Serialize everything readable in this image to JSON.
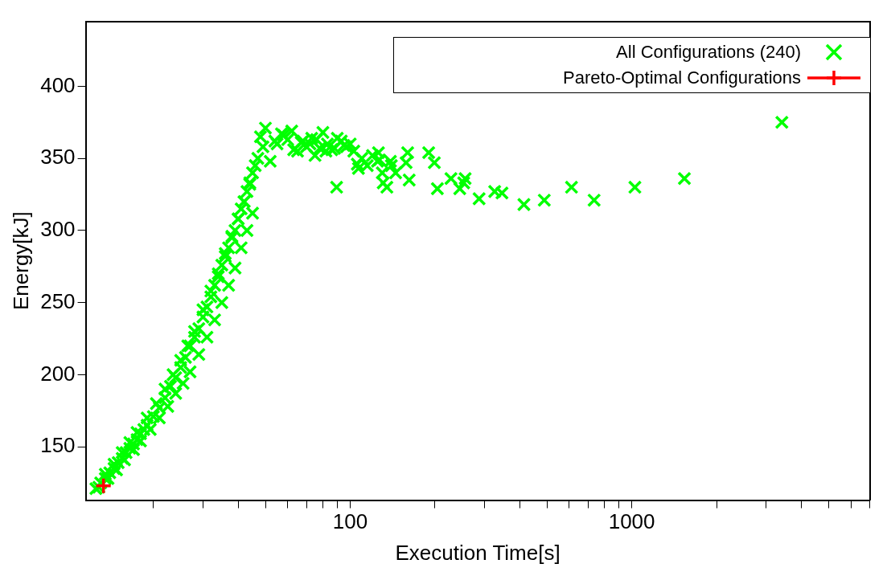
{
  "chart_data": {
    "type": "scatter",
    "xlabel": "Execution Time[s]",
    "ylabel": "Energy[kJ]",
    "log": "x",
    "grid": false,
    "legend": "top right",
    "marker": "cross",
    "xlim": [
      11.5,
      7000
    ],
    "ylim": [
      113,
      445
    ],
    "xticks": [
      {
        "value": 20,
        "label": null
      },
      {
        "value": 30,
        "label": null
      },
      {
        "value": 40,
        "label": null
      },
      {
        "value": 50,
        "label": null
      },
      {
        "value": 60,
        "label": null
      },
      {
        "value": 70,
        "label": null
      },
      {
        "value": 80,
        "label": null
      },
      {
        "value": 90,
        "label": null
      },
      100,
      {
        "value": 200,
        "label": null
      },
      {
        "value": 300,
        "label": null
      },
      {
        "value": 400,
        "label": null
      },
      {
        "value": 500,
        "label": null
      },
      {
        "value": 600,
        "label": null
      },
      {
        "value": 700,
        "label": null
      },
      {
        "value": 800,
        "label": null
      },
      {
        "value": 900,
        "label": null
      },
      1000,
      {
        "value": 2000,
        "label": null
      },
      {
        "value": 3000,
        "label": null
      },
      {
        "value": 4000,
        "label": null
      },
      {
        "value": 5000,
        "label": null
      },
      {
        "value": 6000,
        "label": null
      },
      {
        "value": 7000,
        "label": null
      }
    ],
    "yticks": [
      150,
      200,
      250,
      300,
      350,
      400
    ],
    "series": [
      {
        "name": "All Configurations (240)",
        "type": "scatter",
        "color": "#00ff00",
        "x": [
          12.5,
          13,
          13.5,
          14,
          14.5,
          15,
          15.5,
          16,
          16.5,
          17,
          17.5,
          18,
          18.5,
          19,
          20,
          21,
          22,
          23,
          24,
          25,
          26,
          27,
          28,
          29,
          30,
          31,
          32,
          33,
          34,
          35,
          36,
          37,
          38,
          39,
          40,
          41,
          42,
          43,
          44,
          45,
          46,
          47,
          13.5,
          14.5,
          15.5,
          16.5,
          17.5,
          19,
          20.5,
          22,
          23.5,
          25,
          26.5,
          28,
          30,
          32,
          34,
          36,
          38,
          40,
          42,
          44,
          12.8,
          13.8,
          14.8,
          15.8,
          17,
          18,
          19.5,
          21,
          22.5,
          24,
          25.5,
          27,
          29,
          31,
          33,
          35,
          37,
          39,
          41,
          43,
          45,
          48,
          50,
          52,
          55,
          57,
          60,
          62,
          65,
          68,
          70,
          73,
          75,
          78,
          80,
          83,
          86,
          90,
          93,
          97,
          100,
          103,
          110,
          115,
          120,
          125,
          130,
          140,
          145,
          49,
          54,
          58,
          63,
          67,
          72,
          76,
          82,
          88,
          95,
          89.5,
          106,
          107,
          126,
          127,
          131,
          135,
          139,
          158,
          160,
          162,
          190,
          199,
          204,
          228,
          245,
          253,
          256,
          287,
          326,
          346,
          414,
          489,
          611,
          735,
          1026,
          1538,
          3413
        ],
        "values": [
          121,
          125,
          128,
          132,
          135,
          139,
          142,
          146,
          149,
          152,
          155,
          159,
          162,
          165,
          171,
          177,
          184,
          192,
          198,
          205,
          212,
          220,
          226,
          232,
          240,
          247,
          254,
          262,
          268,
          276,
          282,
          288,
          295,
          300,
          308,
          315,
          320,
          327,
          333,
          340,
          345,
          350,
          131,
          138,
          146,
          153,
          160,
          170,
          180,
          190,
          200,
          210,
          220,
          230,
          245,
          258,
          270,
          284,
          296,
          308,
          320,
          332,
          122,
          128,
          134,
          141,
          148,
          154,
          162,
          170,
          178,
          187,
          194,
          202,
          214,
          226,
          238,
          250,
          262,
          274,
          288,
          300,
          312,
          365,
          371,
          348,
          360,
          367,
          363,
          369,
          355,
          362,
          358,
          364,
          352,
          357,
          368,
          360,
          356,
          364,
          362,
          358,
          360,
          355,
          350,
          345,
          352,
          348,
          340,
          345,
          340,
          358,
          362,
          366,
          356,
          361,
          360,
          363,
          355,
          357,
          359,
          330,
          346,
          343,
          354,
          349,
          333,
          330,
          348,
          347,
          354,
          335,
          354,
          347,
          329,
          336,
          329,
          333,
          336,
          322,
          327,
          326,
          318,
          321,
          330,
          321,
          330,
          336,
          375
        ]
      },
      {
        "name": "Pareto-Optimal Configurations",
        "type": "line",
        "color": "#ff0000",
        "x": [
          13.3
        ],
        "values": [
          123
        ]
      }
    ]
  }
}
